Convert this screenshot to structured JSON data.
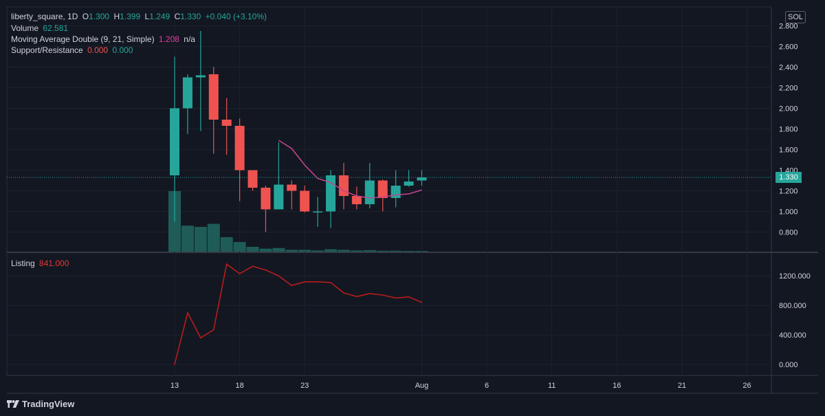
{
  "header": {
    "symbol": "liberty_square, 1D",
    "open_label": "O",
    "open": "1.300",
    "high_label": "H",
    "high": "1.399",
    "low_label": "L",
    "low": "1.249",
    "close_label": "C",
    "close": "1.330",
    "change": "+0.040 (+3.10%)"
  },
  "indicators": {
    "volume_label": "Volume",
    "volume_value": "62.581",
    "ma_label": "Moving Average Double (9, 21, Simple)",
    "ma_value1": "1.208",
    "ma_value2": "n/a",
    "sr_label": "Support/Resistance",
    "sr_value1": "0.000",
    "sr_value2": "0.000",
    "listing_label": "Listing",
    "listing_value": "841.000"
  },
  "currency_badge": "SOL",
  "last_price_tag": "1.330",
  "branding": "TradingView",
  "colors": {
    "up": "#26a69a",
    "down": "#ef5350",
    "ma": "#c2448e",
    "listing": "#b71c1c",
    "volume": "#1f5c58"
  },
  "chart_data": [
    {
      "type": "candlestick",
      "title": "liberty_square, 1D",
      "ylim": [
        0.6,
        2.9
      ],
      "yticks": [
        "0.800",
        "1.000",
        "1.200",
        "1.400",
        "1.600",
        "1.800",
        "2.000",
        "2.200",
        "2.400",
        "2.600",
        "2.800"
      ],
      "xticks": [
        {
          "label": "13",
          "day": 13
        },
        {
          "label": "18",
          "day": 18
        },
        {
          "label": "23",
          "day": 23
        },
        {
          "label": "Aug",
          "day": 32
        },
        {
          "label": "6",
          "day": 37
        },
        {
          "label": "11",
          "day": 42
        },
        {
          "label": "16",
          "day": 47
        },
        {
          "label": "21",
          "day": 52
        },
        {
          "label": "26",
          "day": 57
        }
      ],
      "candles": [
        {
          "day": 13,
          "o": 1.35,
          "h": 2.5,
          "l": 0.9,
          "c": 2.0
        },
        {
          "day": 14,
          "o": 2.0,
          "h": 2.33,
          "l": 1.75,
          "c": 2.3
        },
        {
          "day": 15,
          "o": 2.3,
          "h": 2.75,
          "l": 1.78,
          "c": 2.32
        },
        {
          "day": 16,
          "o": 2.33,
          "h": 2.4,
          "l": 1.56,
          "c": 1.89
        },
        {
          "day": 17,
          "o": 1.89,
          "h": 2.1,
          "l": 1.55,
          "c": 1.83
        },
        {
          "day": 18,
          "o": 1.83,
          "h": 1.9,
          "l": 1.1,
          "c": 1.4
        },
        {
          "day": 19,
          "o": 1.4,
          "h": 1.4,
          "l": 1.2,
          "c": 1.23
        },
        {
          "day": 20,
          "o": 1.23,
          "h": 1.25,
          "l": 0.8,
          "c": 1.02
        },
        {
          "day": 21,
          "o": 1.02,
          "h": 1.67,
          "l": 1.02,
          "c": 1.26
        },
        {
          "day": 22,
          "o": 1.26,
          "h": 1.3,
          "l": 1.02,
          "c": 1.2
        },
        {
          "day": 23,
          "o": 1.2,
          "h": 1.25,
          "l": 0.99,
          "c": 1.0
        },
        {
          "day": 24,
          "o": 0.99,
          "h": 1.14,
          "l": 0.85,
          "c": 1.0
        },
        {
          "day": 25,
          "o": 1.0,
          "h": 1.4,
          "l": 0.84,
          "c": 1.35
        },
        {
          "day": 26,
          "o": 1.35,
          "h": 1.47,
          "l": 1.02,
          "c": 1.15
        },
        {
          "day": 27,
          "o": 1.15,
          "h": 1.24,
          "l": 1.02,
          "c": 1.07
        },
        {
          "day": 28,
          "o": 1.07,
          "h": 1.47,
          "l": 1.03,
          "c": 1.3
        },
        {
          "day": 29,
          "o": 1.3,
          "h": 1.31,
          "l": 1.0,
          "c": 1.13
        },
        {
          "day": 30,
          "o": 1.13,
          "h": 1.4,
          "l": 1.04,
          "c": 1.25
        },
        {
          "day": 31,
          "o": 1.25,
          "h": 1.4,
          "l": 1.24,
          "c": 1.29
        },
        {
          "day": 32,
          "o": 1.3,
          "h": 1.399,
          "l": 1.249,
          "c": 1.33
        }
      ],
      "moving_average": [
        {
          "day": 21,
          "v": 1.69
        },
        {
          "day": 22,
          "v": 1.61
        },
        {
          "day": 23,
          "v": 1.45
        },
        {
          "day": 24,
          "v": 1.32
        },
        {
          "day": 25,
          "v": 1.28
        },
        {
          "day": 26,
          "v": 1.2
        },
        {
          "day": 27,
          "v": 1.15
        },
        {
          "day": 28,
          "v": 1.13
        },
        {
          "day": 29,
          "v": 1.14
        },
        {
          "day": 30,
          "v": 1.16
        },
        {
          "day": 31,
          "v": 1.17
        },
        {
          "day": 32,
          "v": 1.208
        }
      ],
      "volume": {
        "max": 1.0,
        "values": [
          {
            "day": 13,
            "v": 1.0
          },
          {
            "day": 14,
            "v": 0.43
          },
          {
            "day": 15,
            "v": 0.41
          },
          {
            "day": 16,
            "v": 0.46
          },
          {
            "day": 17,
            "v": 0.24
          },
          {
            "day": 18,
            "v": 0.16
          },
          {
            "day": 19,
            "v": 0.08
          },
          {
            "day": 20,
            "v": 0.05
          },
          {
            "day": 21,
            "v": 0.06
          },
          {
            "day": 22,
            "v": 0.03
          },
          {
            "day": 23,
            "v": 0.03
          },
          {
            "day": 24,
            "v": 0.02
          },
          {
            "day": 25,
            "v": 0.04
          },
          {
            "day": 26,
            "v": 0.03
          },
          {
            "day": 27,
            "v": 0.02
          },
          {
            "day": 28,
            "v": 0.025
          },
          {
            "day": 29,
            "v": 0.015
          },
          {
            "day": 30,
            "v": 0.015
          },
          {
            "day": 31,
            "v": 0.01
          },
          {
            "day": 32,
            "v": 0.01
          }
        ]
      }
    },
    {
      "type": "line",
      "title": "Listing",
      "ylim": [
        -80,
        1460
      ],
      "yticks": [
        "0.000",
        "400.000",
        "800.000",
        "1200.000"
      ],
      "points": [
        {
          "day": 13,
          "v": 0
        },
        {
          "day": 14,
          "v": 700
        },
        {
          "day": 15,
          "v": 360
        },
        {
          "day": 16,
          "v": 470
        },
        {
          "day": 17,
          "v": 1360
        },
        {
          "day": 18,
          "v": 1230
        },
        {
          "day": 19,
          "v": 1330
        },
        {
          "day": 20,
          "v": 1280
        },
        {
          "day": 21,
          "v": 1200
        },
        {
          "day": 22,
          "v": 1070
        },
        {
          "day": 23,
          "v": 1120
        },
        {
          "day": 24,
          "v": 1120
        },
        {
          "day": 25,
          "v": 1110
        },
        {
          "day": 26,
          "v": 970
        },
        {
          "day": 27,
          "v": 920
        },
        {
          "day": 28,
          "v": 960
        },
        {
          "day": 29,
          "v": 940
        },
        {
          "day": 30,
          "v": 900
        },
        {
          "day": 31,
          "v": 915
        },
        {
          "day": 32,
          "v": 841
        }
      ]
    }
  ]
}
